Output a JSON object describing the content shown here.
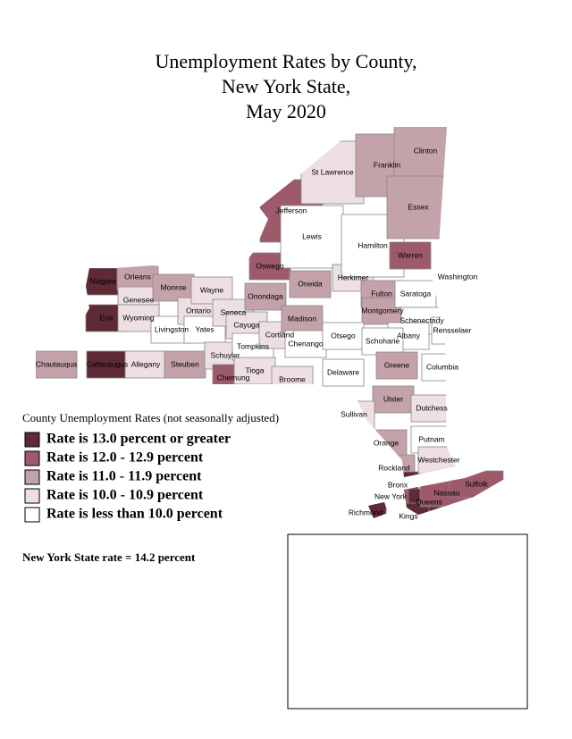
{
  "title": [
    "Unemployment Rates by County,",
    "New York State,",
    "May 2020"
  ],
  "legend": {
    "title": "County Unemployment Rates (not seasonally adjusted)",
    "items": [
      {
        "label": "Rate is 13.0 percent or greater",
        "color": "#5e2a36"
      },
      {
        "label": "Rate is 12.0 - 12.9 percent",
        "color": "#9c5a6a"
      },
      {
        "label": "Rate is 11.0 - 11.9 percent",
        "color": "#c4a2aa"
      },
      {
        "label": "Rate is 10.0 - 10.9 percent",
        "color": "#eddfe2"
      },
      {
        "label": "Rate is less than 10.0 percent",
        "color": "#ffffff"
      }
    ]
  },
  "note": "New York State rate = 14.2 percent",
  "counties": [
    {
      "label": "Niagara",
      "class": 0
    },
    {
      "label": "Orleans",
      "class": 2
    },
    {
      "label": "Genesee",
      "class": 3
    },
    {
      "label": "Erie",
      "class": 0
    },
    {
      "label": "Wyoming",
      "class": 3
    },
    {
      "label": "Chautauqua",
      "class": 2
    },
    {
      "label": "Cattaraugus",
      "class": 0
    },
    {
      "label": "Allegany",
      "class": 3
    },
    {
      "label": "Monroe",
      "class": 2
    },
    {
      "label": "Livingston",
      "class": 4
    },
    {
      "label": "Ontario",
      "class": 3
    },
    {
      "label": "Wayne",
      "class": 3
    },
    {
      "label": "Yates",
      "class": 4
    },
    {
      "label": "Steuben",
      "class": 2
    },
    {
      "label": "Seneca",
      "class": 3
    },
    {
      "label": "Cayuga",
      "class": 3
    },
    {
      "label": "Schuyler",
      "class": 3
    },
    {
      "label": "Chemung",
      "class": 1
    },
    {
      "label": "Tompkins",
      "class": 4
    },
    {
      "label": "Tioga",
      "class": 3
    },
    {
      "label": "Onondaga",
      "class": 2
    },
    {
      "label": "Cortland",
      "class": 3
    },
    {
      "label": "Broome",
      "class": 3
    },
    {
      "label": "Oswego",
      "class": 1
    },
    {
      "label": "Jefferson",
      "class": 1
    },
    {
      "label": "St Lawrence",
      "class": 3
    },
    {
      "label": "Lewis",
      "class": 4
    },
    {
      "label": "Oneida",
      "class": 2
    },
    {
      "label": "Madison",
      "class": 2
    },
    {
      "label": "Chenango",
      "class": 4
    },
    {
      "label": "Herkimer",
      "class": 3
    },
    {
      "label": "Hamilton",
      "class": 4
    },
    {
      "label": "Franklin",
      "class": 2
    },
    {
      "label": "Clinton",
      "class": 2
    },
    {
      "label": "Essex",
      "class": 2
    },
    {
      "label": "Warren",
      "class": 1
    },
    {
      "label": "Washington",
      "class": 3
    },
    {
      "label": "Fulton",
      "class": 2
    },
    {
      "label": "Montgomery",
      "class": 2
    },
    {
      "label": "Saratoga",
      "class": 4
    },
    {
      "label": "Schenectady",
      "class": 4
    },
    {
      "label": "Albany",
      "class": 4
    },
    {
      "label": "Rensselaer",
      "class": 4
    },
    {
      "label": "Otsego",
      "class": 4
    },
    {
      "label": "Schoharie",
      "class": 4
    },
    {
      "label": "Delaware",
      "class": 4
    },
    {
      "label": "Greene",
      "class": 2
    },
    {
      "label": "Columbia",
      "class": 4
    },
    {
      "label": "Ulster",
      "class": 2
    },
    {
      "label": "Dutchess",
      "class": 3
    },
    {
      "label": "Sullivan",
      "class": 3
    },
    {
      "label": "Orange",
      "class": 2
    },
    {
      "label": "Putnam",
      "class": 4
    },
    {
      "label": "Rockland",
      "class": 2
    },
    {
      "label": "Westchester",
      "class": 3
    },
    {
      "label": "Bronx",
      "class": 0
    },
    {
      "label": "New York",
      "class": 1
    },
    {
      "label": "Queens",
      "class": 0
    },
    {
      "label": "Kings",
      "class": 0
    },
    {
      "label": "Richmond",
      "class": 0
    },
    {
      "label": "Nassau",
      "class": 1
    },
    {
      "label": "Suffolk",
      "class": 1
    }
  ]
}
